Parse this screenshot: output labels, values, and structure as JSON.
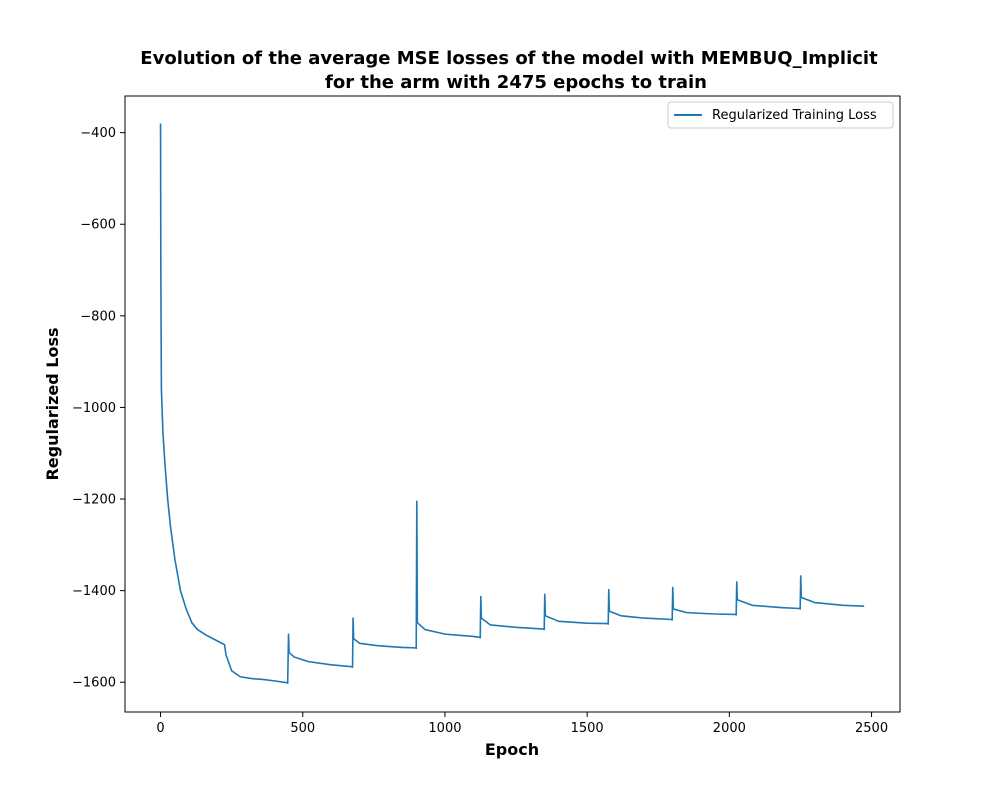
{
  "chart_data": {
    "type": "line",
    "title": "Evolution of the average MSE losses of the model with MEMBUQ_Implicit",
    "subtitle": "for the arm with 2475 epochs to train",
    "xlabel": "Epoch",
    "ylabel": "Regularized Loss",
    "xlim": [
      -125,
      2600
    ],
    "ylim": [
      -1665,
      -320
    ],
    "x_ticks": [
      0,
      500,
      1000,
      1500,
      2000,
      2500
    ],
    "y_ticks": [
      -1600,
      -1400,
      -1200,
      -1000,
      -800,
      -600,
      -400
    ],
    "y_tick_labels": [
      "−1600",
      "−1400",
      "−1200",
      "−1000",
      "−800",
      "−600",
      "−400"
    ],
    "grid": false,
    "legend_position": "top-right",
    "series": [
      {
        "name": "Regularized Training Loss",
        "color": "#1f77b4",
        "points": [
          [
            0,
            -380
          ],
          [
            1,
            -700
          ],
          [
            3,
            -960
          ],
          [
            8,
            -1050
          ],
          [
            15,
            -1120
          ],
          [
            25,
            -1200
          ],
          [
            35,
            -1260
          ],
          [
            50,
            -1330
          ],
          [
            70,
            -1400
          ],
          [
            90,
            -1440
          ],
          [
            110,
            -1470
          ],
          [
            130,
            -1485
          ],
          [
            160,
            -1497
          ],
          [
            200,
            -1510
          ],
          [
            225,
            -1518
          ],
          [
            230,
            -1540
          ],
          [
            250,
            -1575
          ],
          [
            280,
            -1588
          ],
          [
            320,
            -1592
          ],
          [
            360,
            -1594
          ],
          [
            400,
            -1597
          ],
          [
            444,
            -1601
          ],
          [
            447,
            -1602
          ],
          [
            450,
            -1495
          ],
          [
            452,
            -1535
          ],
          [
            470,
            -1545
          ],
          [
            520,
            -1555
          ],
          [
            600,
            -1562
          ],
          [
            672,
            -1566
          ],
          [
            675,
            -1567
          ],
          [
            677,
            -1460
          ],
          [
            679,
            -1505
          ],
          [
            700,
            -1515
          ],
          [
            760,
            -1520
          ],
          [
            850,
            -1524
          ],
          [
            897,
            -1525
          ],
          [
            899,
            -1526
          ],
          [
            901,
            -1205
          ],
          [
            903,
            -1470
          ],
          [
            930,
            -1485
          ],
          [
            1000,
            -1495
          ],
          [
            1100,
            -1500
          ],
          [
            1122,
            -1502
          ],
          [
            1124,
            -1503
          ],
          [
            1126,
            -1413
          ],
          [
            1128,
            -1460
          ],
          [
            1160,
            -1475
          ],
          [
            1250,
            -1480
          ],
          [
            1347,
            -1484
          ],
          [
            1349,
            -1485
          ],
          [
            1351,
            -1408
          ],
          [
            1353,
            -1455
          ],
          [
            1400,
            -1467
          ],
          [
            1500,
            -1471
          ],
          [
            1572,
            -1472
          ],
          [
            1574,
            -1473
          ],
          [
            1576,
            -1398
          ],
          [
            1578,
            -1445
          ],
          [
            1620,
            -1455
          ],
          [
            1700,
            -1460
          ],
          [
            1797,
            -1463
          ],
          [
            1799,
            -1464
          ],
          [
            1801,
            -1393
          ],
          [
            1803,
            -1440
          ],
          [
            1850,
            -1448
          ],
          [
            1950,
            -1451
          ],
          [
            2022,
            -1452
          ],
          [
            2024,
            -1453
          ],
          [
            2026,
            -1381
          ],
          [
            2028,
            -1420
          ],
          [
            2080,
            -1432
          ],
          [
            2180,
            -1437
          ],
          [
            2247,
            -1439
          ],
          [
            2249,
            -1440
          ],
          [
            2251,
            -1368
          ],
          [
            2253,
            -1415
          ],
          [
            2300,
            -1426
          ],
          [
            2400,
            -1432
          ],
          [
            2474,
            -1434
          ]
        ]
      }
    ]
  }
}
